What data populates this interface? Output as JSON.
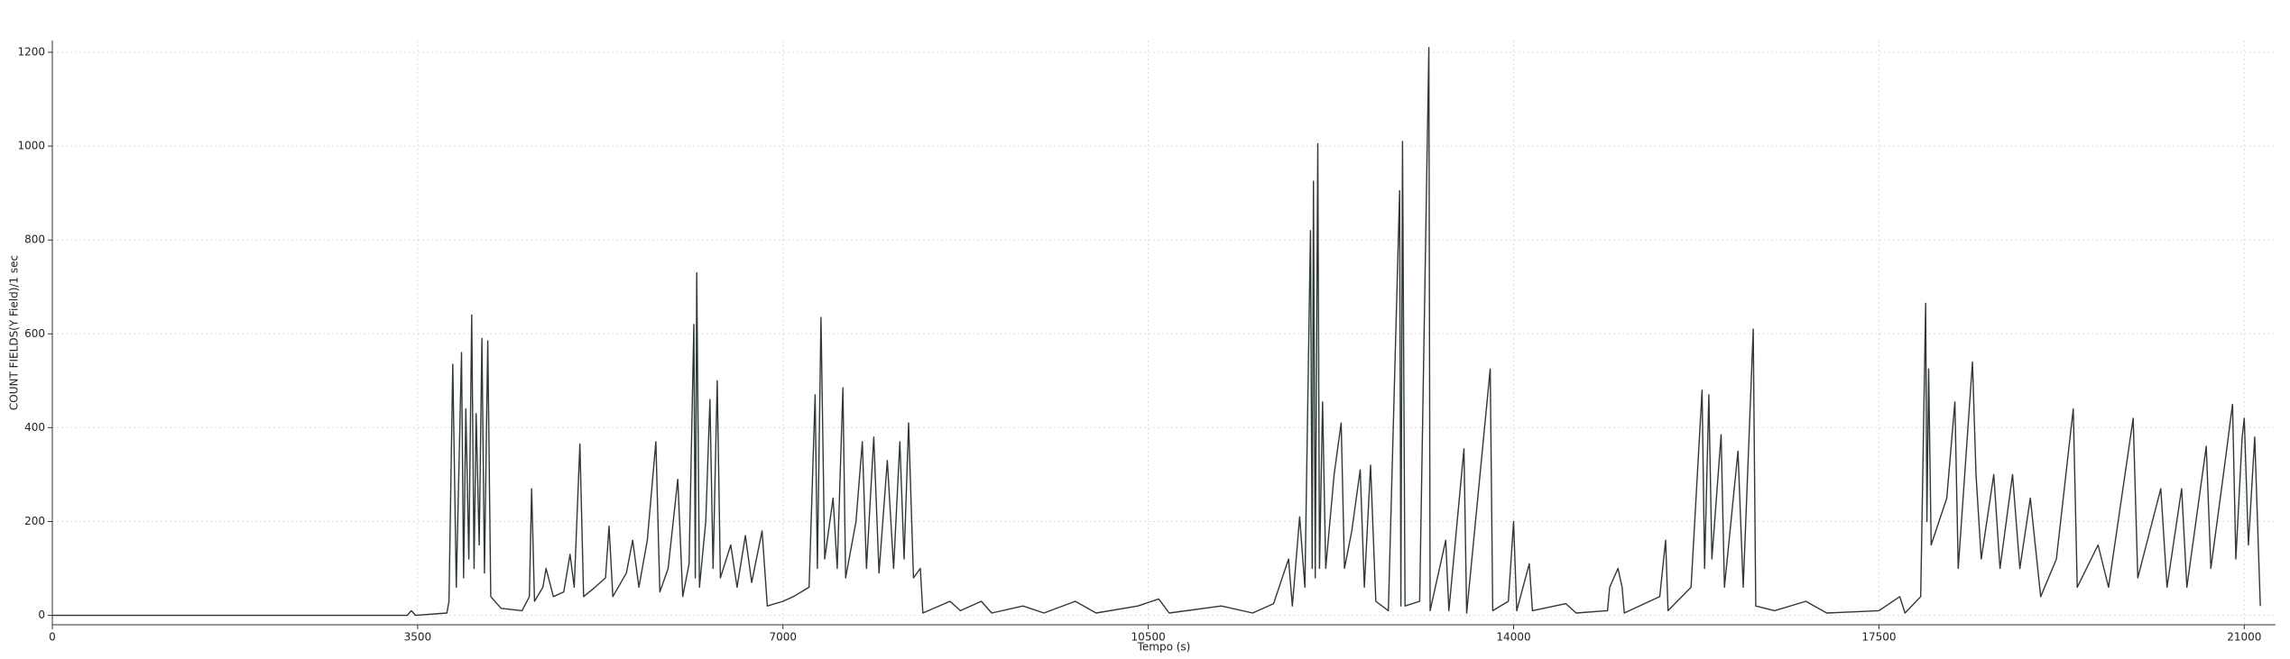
{
  "chart_data": {
    "type": "line",
    "x_label": "Tempo (s)",
    "y_label": "COUNT FIELDS(Y Field)/1 sec",
    "color": "#2f3838",
    "grid": true,
    "xlim": [
      0,
      21300
    ],
    "xticks": [
      0,
      3500,
      7000,
      10500,
      14000,
      17500,
      21000
    ],
    "ylim": [
      -20,
      1225
    ],
    "yticks": [
      0,
      200,
      400,
      600,
      800,
      1000,
      1200
    ],
    "x": [
      0,
      3400,
      3440,
      3480,
      3780,
      3800,
      3836,
      3870,
      3920,
      3940,
      3962,
      3990,
      4018,
      4040,
      4060,
      4090,
      4116,
      4140,
      4172,
      4200,
      4300,
      4500,
      4570,
      4592,
      4620,
      4700,
      4730,
      4800,
      4900,
      4960,
      5000,
      5054,
      5090,
      5200,
      5300,
      5334,
      5370,
      5500,
      5560,
      5620,
      5700,
      5782,
      5820,
      5900,
      5992,
      6040,
      6100,
      6146,
      6160,
      6174,
      6200,
      6260,
      6300,
      6330,
      6370,
      6400,
      6500,
      6560,
      6640,
      6700,
      6800,
      6850,
      7000,
      7100,
      7250,
      7308,
      7330,
      7364,
      7400,
      7480,
      7520,
      7574,
      7600,
      7700,
      7760,
      7800,
      7870,
      7920,
      8000,
      8060,
      8120,
      8160,
      8204,
      8250,
      8316,
      8340,
      8600,
      8700,
      8900,
      9000,
      9300,
      9500,
      9800,
      10000,
      10400,
      10600,
      10700,
      11200,
      11500,
      11700,
      11844,
      11880,
      11950,
      12000,
      12054,
      12070,
      12082,
      12100,
      12124,
      12140,
      12170,
      12200,
      12280,
      12348,
      12380,
      12450,
      12530,
      12570,
      12630,
      12680,
      12800,
      12908,
      12920,
      12936,
      12960,
      13100,
      13188,
      13200,
      13350,
      13380,
      13524,
      13550,
      13776,
      13800,
      13950,
      14000,
      14030,
      14150,
      14180,
      14500,
      14600,
      14900,
      14920,
      15000,
      15040,
      15060,
      15400,
      15456,
      15480,
      15700,
      15806,
      15830,
      15870,
      15900,
      15988,
      16020,
      16150,
      16200,
      16296,
      16320,
      16500,
      16800,
      17000,
      17500,
      17700,
      17750,
      17900,
      17948,
      17960,
      17976,
      18000,
      18150,
      18228,
      18260,
      18396,
      18430,
      18480,
      18600,
      18660,
      18780,
      18850,
      18950,
      19050,
      19200,
      19362,
      19400,
      19600,
      19700,
      19936,
      19980,
      20200,
      20260,
      20400,
      20450,
      20636,
      20680,
      20800,
      20888,
      20920,
      20980,
      21000,
      21040,
      21100,
      21154
    ],
    "values": [
      0,
      0,
      10,
      0,
      5,
      30,
      535,
      60,
      560,
      80,
      440,
      120,
      640,
      100,
      430,
      150,
      590,
      90,
      585,
      40,
      15,
      10,
      40,
      270,
      30,
      60,
      100,
      40,
      50,
      130,
      60,
      365,
      40,
      60,
      80,
      190,
      40,
      90,
      160,
      60,
      160,
      370,
      50,
      100,
      290,
      40,
      110,
      620,
      80,
      730,
      60,
      200,
      460,
      100,
      500,
      80,
      150,
      60,
      170,
      70,
      180,
      20,
      30,
      40,
      60,
      470,
      100,
      635,
      120,
      250,
      100,
      485,
      80,
      200,
      370,
      100,
      380,
      90,
      330,
      100,
      370,
      120,
      410,
      80,
      100,
      5,
      30,
      10,
      30,
      5,
      20,
      5,
      30,
      5,
      20,
      35,
      5,
      20,
      5,
      25,
      120,
      20,
      210,
      60,
      820,
      100,
      925,
      80,
      1005,
      100,
      455,
      100,
      300,
      410,
      100,
      180,
      310,
      60,
      320,
      30,
      10,
      905,
      20,
      1010,
      20,
      30,
      1210,
      10,
      160,
      10,
      355,
      5,
      525,
      10,
      30,
      200,
      10,
      110,
      10,
      25,
      5,
      10,
      60,
      100,
      60,
      5,
      40,
      160,
      10,
      60,
      480,
      100,
      470,
      120,
      385,
      60,
      350,
      60,
      610,
      20,
      10,
      30,
      5,
      10,
      40,
      5,
      40,
      665,
      200,
      525,
      150,
      250,
      455,
      100,
      540,
      300,
      120,
      300,
      100,
      300,
      100,
      250,
      40,
      120,
      440,
      60,
      150,
      60,
      420,
      80,
      270,
      60,
      270,
      60,
      360,
      100,
      300,
      450,
      120,
      380,
      420,
      150,
      380,
      20
    ]
  }
}
